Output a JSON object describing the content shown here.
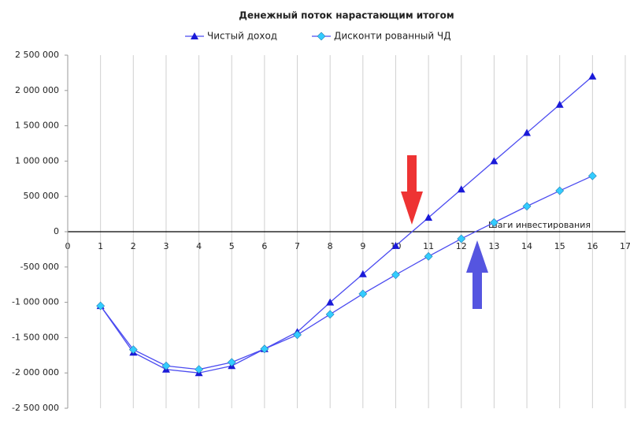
{
  "chart_data": {
    "type": "line",
    "title": "Денежный поток нарастающим итогом",
    "x_label": "Шаги инвестирования",
    "x": [
      1,
      2,
      3,
      4,
      5,
      6,
      7,
      8,
      9,
      10,
      11,
      12,
      13,
      14,
      15,
      16
    ],
    "series": [
      {
        "name": "Чистый доход",
        "color": "#4b4bf0",
        "marker": "triangle",
        "marker_color": "#1a1ad8",
        "values": [
          -1050000,
          -1710000,
          -1950000,
          -2000000,
          -1900000,
          -1660000,
          -1420000,
          -1000000,
          -600000,
          -200000,
          200000,
          600000,
          1000000,
          1400000,
          1800000,
          2200000
        ]
      },
      {
        "name": "Дисконти рованный ЧД",
        "color": "#4b4bf0",
        "marker": "diamond",
        "marker_color": "#33ccff",
        "values": [
          -1050000,
          -1670000,
          -1900000,
          -1950000,
          -1850000,
          -1660000,
          -1460000,
          -1170000,
          -880000,
          -610000,
          -350000,
          -100000,
          130000,
          360000,
          580000,
          790000
        ]
      }
    ],
    "xlim": [
      0,
      17
    ],
    "xticks": [
      0,
      1,
      2,
      3,
      4,
      5,
      6,
      7,
      8,
      9,
      10,
      11,
      12,
      13,
      14,
      15,
      16,
      17
    ],
    "ylim": [
      -2500000,
      2500000
    ],
    "yticks": [
      {
        "value": -2500000,
        "label": "-2 500 000"
      },
      {
        "value": -2000000,
        "label": "-2 000 000"
      },
      {
        "value": -1500000,
        "label": "-1 500 000"
      },
      {
        "value": -1000000,
        "label": "-1 000 000"
      },
      {
        "value": -500000,
        "label": "-500 000"
      },
      0,
      {
        "value": 500000,
        "label": "500 000"
      },
      {
        "value": 1000000,
        "label": "1 000 000"
      },
      {
        "value": 1500000,
        "label": "1 500 000"
      },
      {
        "value": 2000000,
        "label": "2 000 000"
      },
      {
        "value": 2500000,
        "label": "2 500 000"
      }
    ],
    "grid": {
      "x": true,
      "y": false
    },
    "legend": "top"
  }
}
